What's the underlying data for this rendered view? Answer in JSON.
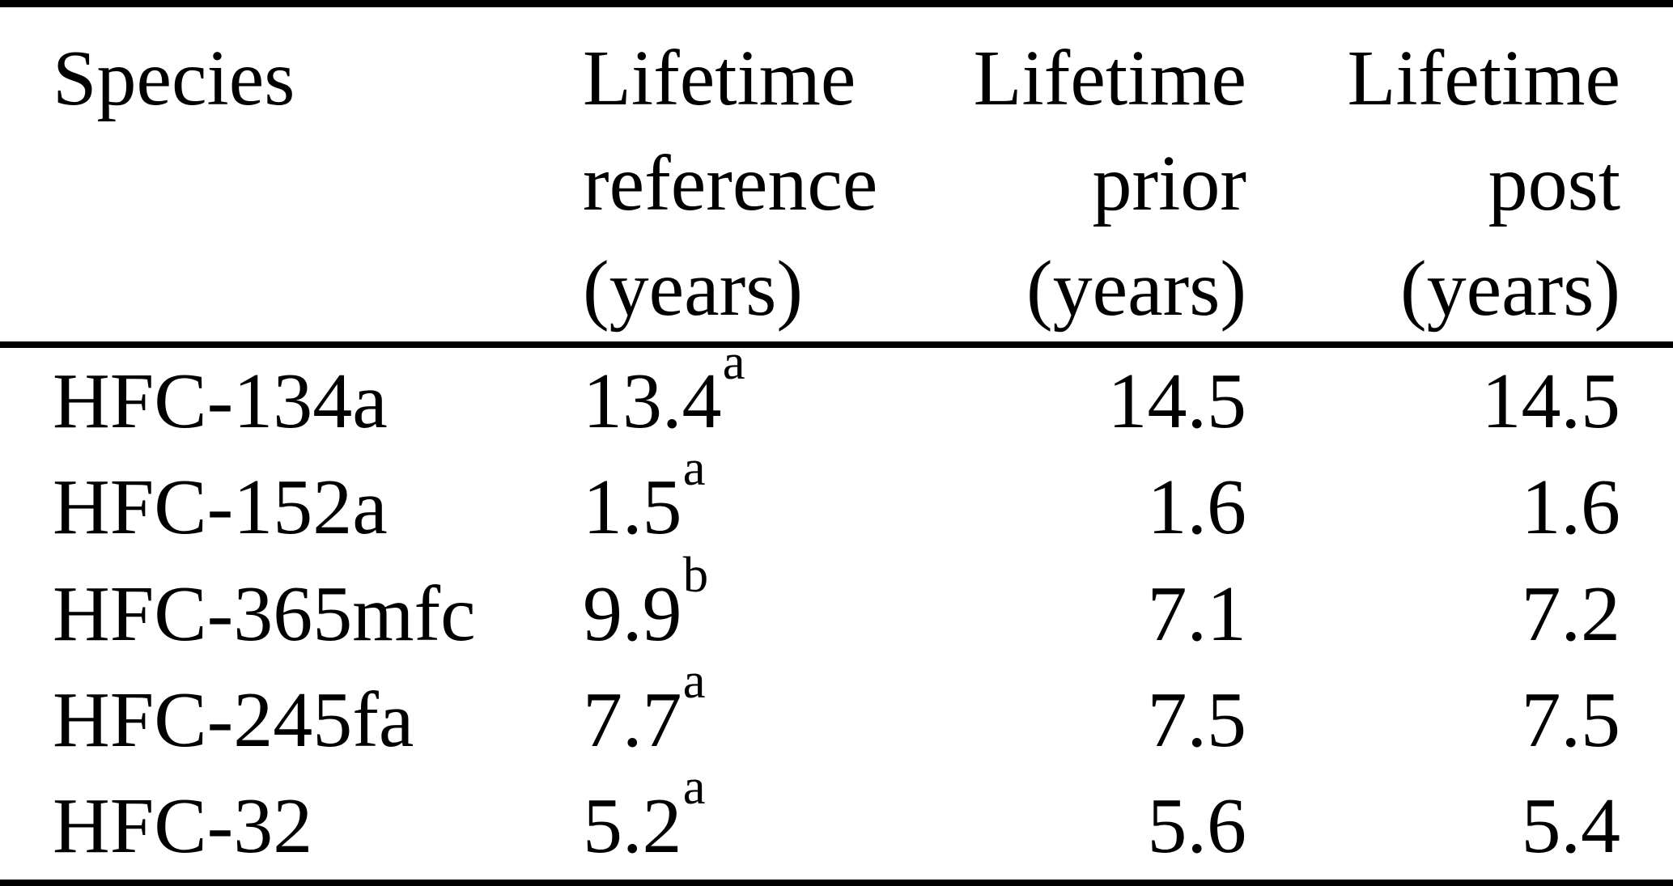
{
  "table": {
    "colors": {
      "text": "#000000",
      "background": "#ffffff",
      "rule": "#000000"
    },
    "header": {
      "species": "Species",
      "reference": {
        "line1": "Lifetime",
        "line2": "reference",
        "line3": "(years)"
      },
      "prior": {
        "line1": "Lifetime",
        "line2": "prior",
        "line3": "(years)"
      },
      "post": {
        "line1": "Lifetime",
        "line2": "post",
        "line3": "(years)"
      }
    },
    "rows": [
      {
        "species": "HFC-134a",
        "reference": "13.4",
        "reference_note": "a",
        "prior": "14.5",
        "post": "14.5"
      },
      {
        "species": "HFC-152a",
        "reference": "1.5",
        "reference_note": "a",
        "prior": "1.6",
        "post": "1.6"
      },
      {
        "species": "HFC-365mfc",
        "reference": "9.9",
        "reference_note": "b",
        "prior": "7.1",
        "post": "7.2"
      },
      {
        "species": "HFC-245fa",
        "reference": "7.7",
        "reference_note": "a",
        "prior": "7.5",
        "post": "7.5"
      },
      {
        "species": "HFC-32",
        "reference": "5.2",
        "reference_note": "a",
        "prior": "5.6",
        "post": "5.4"
      }
    ]
  }
}
